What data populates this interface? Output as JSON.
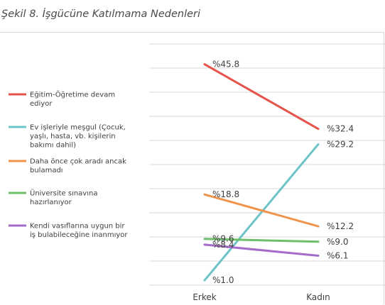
{
  "caption": "Şekil 8. İşgücüne Katılmama Nedenleri",
  "chart_data": {
    "type": "line",
    "title": "",
    "categories": [
      "Erkek",
      "Kadın"
    ],
    "ylim": [
      0,
      50
    ],
    "grid": true,
    "legend_position": "left",
    "series": [
      {
        "name": "Eğitim-Öğretime devam ediyor",
        "legend_lines": [
          "Eğitim-Öğretime devam",
          "ediyor"
        ],
        "color": "#e5534b",
        "values": [
          45.8,
          32.4
        ],
        "labels": [
          "%45.8",
          "%32.4"
        ]
      },
      {
        "name": "Ev işleriyle meşgul (Çocuk, yaşlı, hasta, vb. kişilerin bakımı dahil)",
        "legend_lines": [
          "Ev işleriyle meşgul (Çocuk,",
          "yaşlı, hasta, vb. kişilerin",
          "bakımı dahil)"
        ],
        "color": "#6cc4c8",
        "values": [
          1.0,
          29.2
        ],
        "labels": [
          "%1.0",
          "%29.2"
        ]
      },
      {
        "name": "Daha önce çok aradı ancak bulamadı",
        "legend_lines": [
          "Daha önce çok aradı ancak",
          "bulamadı"
        ],
        "color": "#f0934a",
        "values": [
          18.8,
          12.2
        ],
        "labels": [
          "%18.8",
          "%12.2"
        ]
      },
      {
        "name": "Üniversite sınavına hazırlanıyor",
        "legend_lines": [
          "Üniversite sınavına",
          "hazırlanıyor"
        ],
        "color": "#6ebf6a",
        "values": [
          9.6,
          9.0
        ],
        "labels": [
          "%9.6",
          "%9.0"
        ]
      },
      {
        "name": "Kendi vasıflarına uygun bir iş bulabileceğine inanmıyor",
        "legend_lines": [
          "Kendi vasıflarına uygun bir",
          "iş bulabileceğine inanmıyor"
        ],
        "color": "#a56bc9",
        "values": [
          8.4,
          6.1
        ],
        "labels": [
          "%8.4",
          "%6.1"
        ]
      }
    ]
  }
}
